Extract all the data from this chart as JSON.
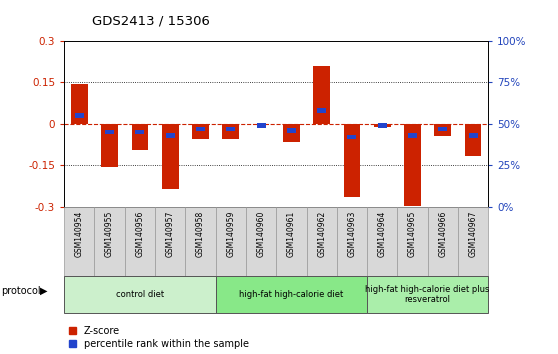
{
  "title": "GDS2413 / 15306",
  "samples": [
    "GSM140954",
    "GSM140955",
    "GSM140956",
    "GSM140957",
    "GSM140958",
    "GSM140959",
    "GSM140960",
    "GSM140961",
    "GSM140962",
    "GSM140963",
    "GSM140964",
    "GSM140965",
    "GSM140966",
    "GSM140967"
  ],
  "zscore": [
    0.145,
    -0.155,
    -0.095,
    -0.235,
    -0.055,
    -0.055,
    -0.005,
    -0.065,
    0.21,
    -0.265,
    -0.01,
    -0.295,
    -0.045,
    -0.115
  ],
  "pct_rank": [
    55,
    45,
    45,
    43,
    47,
    47,
    49,
    46,
    58,
    42,
    49,
    43,
    47,
    43
  ],
  "ylim": [
    -0.3,
    0.3
  ],
  "yticks_left": [
    -0.3,
    -0.15,
    0.0,
    0.15,
    0.3
  ],
  "yticks_right": [
    0,
    25,
    50,
    75,
    100
  ],
  "bar_color": "#cc2200",
  "pct_color": "#2244cc",
  "zero_line_color": "#cc2200",
  "grid_color": "#000000",
  "groups": [
    {
      "label": "control diet",
      "start": 0,
      "end": 4,
      "color": "#ccf0cc"
    },
    {
      "label": "high-fat high-calorie diet",
      "start": 5,
      "end": 9,
      "color": "#88e888"
    },
    {
      "label": "high-fat high-calorie diet plus\nresveratrol",
      "start": 10,
      "end": 13,
      "color": "#aaeeaa"
    }
  ],
  "legend_zscore": "Z-score",
  "legend_pct": "percentile rank within the sample",
  "protocol_label": "protocol",
  "axis_label_color_left": "#cc2200",
  "axis_label_color_right": "#2244bb",
  "bar_width": 0.55,
  "pct_bar_width": 0.3,
  "pct_bar_height": 0.016
}
